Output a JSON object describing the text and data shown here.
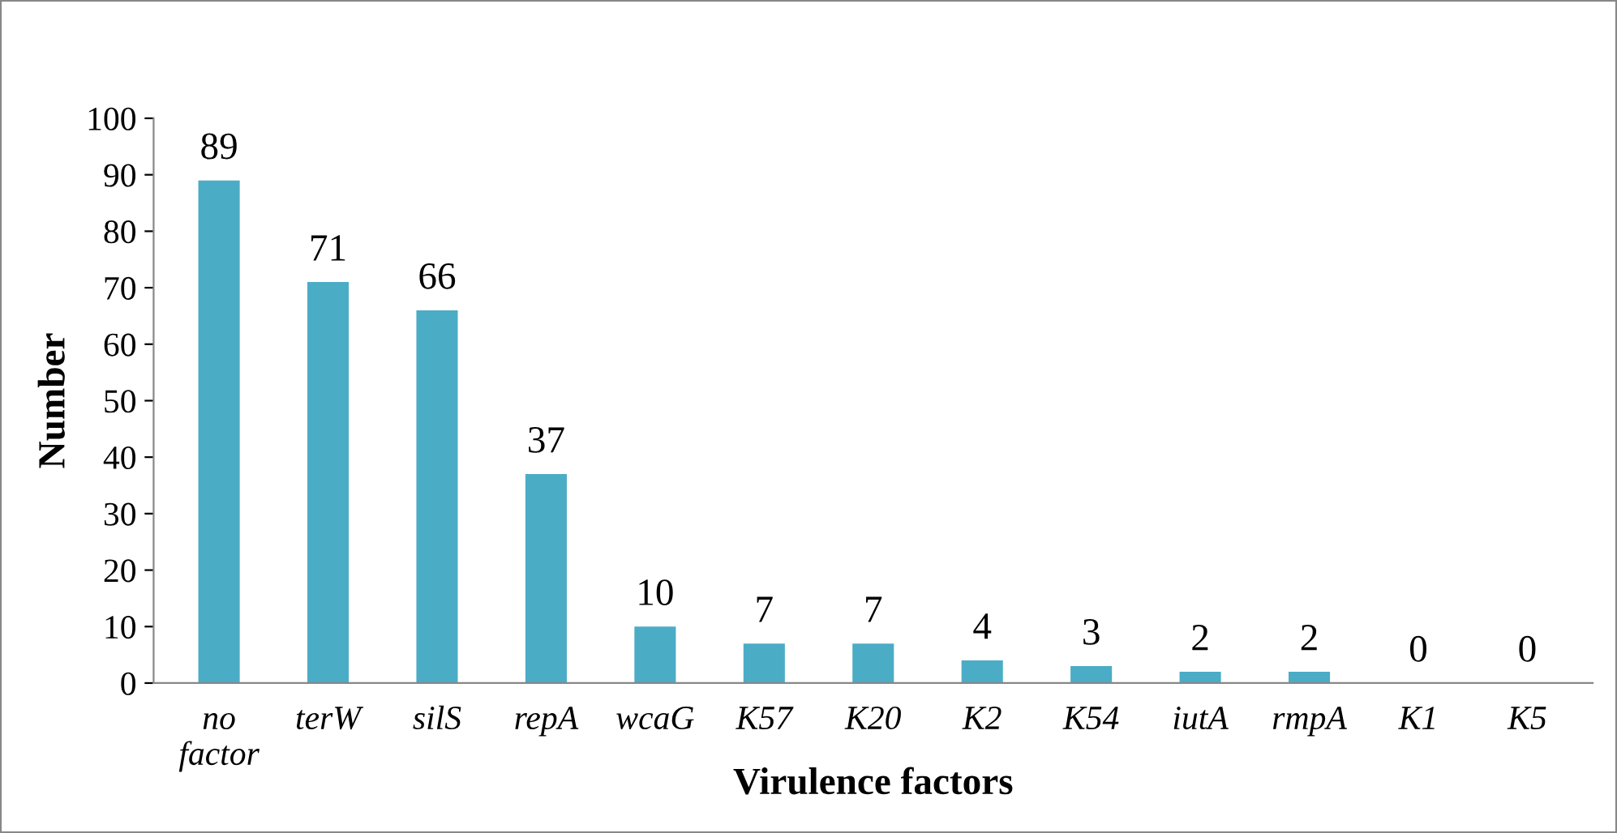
{
  "chart_data": {
    "type": "bar",
    "categories": [
      "no\nfactor",
      "terW",
      "silS",
      "repA",
      "wcaG",
      "K57",
      "K20",
      "K2",
      "K54",
      "iutA",
      "rmpA",
      "K1",
      "K5"
    ],
    "values": [
      89,
      71,
      66,
      37,
      10,
      7,
      7,
      4,
      3,
      2,
      2,
      0,
      0
    ],
    "color": "#4bacc6",
    "xlabel": "Virulence factors",
    "ylabel": "Number",
    "ylim": [
      0,
      100
    ],
    "yticks": [
      0,
      10,
      20,
      30,
      40,
      50,
      60,
      70,
      80,
      90,
      100
    ],
    "data_labels": true,
    "grid": false,
    "legend": false
  }
}
